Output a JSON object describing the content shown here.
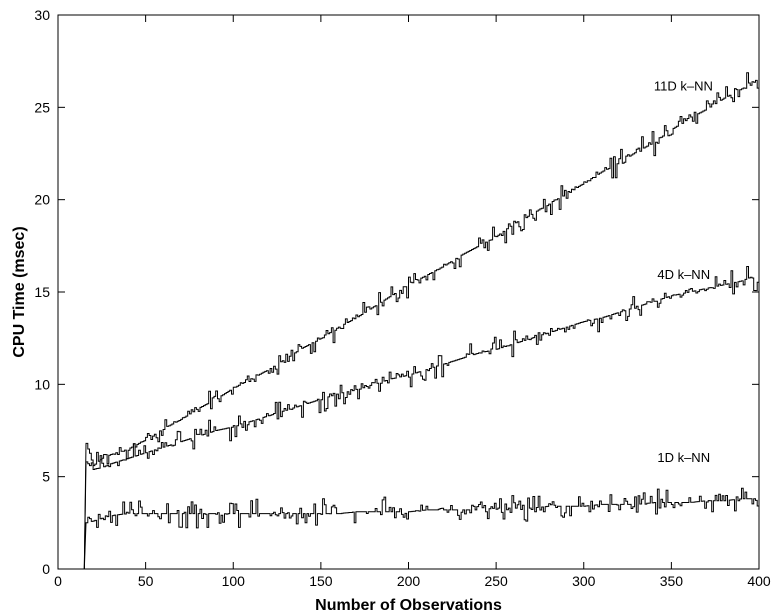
{
  "chart_data": {
    "type": "line",
    "title": "",
    "xlabel": "Number of Observations",
    "ylabel": "CPU Time (msec)",
    "xlim": [
      0,
      400
    ],
    "ylim": [
      0,
      30
    ],
    "xticks": [
      0,
      50,
      100,
      150,
      200,
      250,
      300,
      350,
      400
    ],
    "yticks": [
      0,
      5,
      10,
      15,
      20,
      25,
      30
    ],
    "xtick_labels": [
      "0",
      "50",
      "100",
      "150",
      "200",
      "250",
      "300",
      "350",
      "400"
    ],
    "ytick_labels": [
      "0",
      "5",
      "10",
      "15",
      "20",
      "25",
      "30"
    ],
    "grid": false,
    "legend": "none",
    "line_color": "#000000",
    "series": [
      {
        "label": "11D k–NN",
        "label_pos": [
          340,
          25.9
        ],
        "x": [
          15,
          16,
          20,
          25,
          30,
          40,
          50,
          60,
          70,
          80,
          90,
          100,
          110,
          120,
          130,
          140,
          150,
          160,
          170,
          180,
          190,
          200,
          210,
          220,
          230,
          240,
          250,
          260,
          270,
          280,
          290,
          300,
          310,
          320,
          330,
          340,
          350,
          360,
          370,
          380,
          390,
          395,
          400
        ],
        "y": [
          0,
          6.8,
          5.6,
          6.0,
          6.2,
          6.5,
          7.0,
          7.6,
          8.1,
          8.7,
          9.2,
          9.8,
          10.3,
          10.8,
          11.4,
          12.0,
          12.5,
          13.1,
          13.6,
          14.2,
          14.8,
          15.4,
          15.9,
          16.4,
          17.0,
          17.5,
          18.0,
          18.7,
          19.2,
          19.8,
          20.3,
          20.9,
          21.5,
          22.0,
          22.6,
          23.1,
          23.8,
          24.4,
          24.9,
          25.5,
          26.0,
          26.4,
          26.3
        ]
      },
      {
        "label": "4D k–NN",
        "label_pos": [
          342,
          15.7
        ],
        "x": [
          15,
          16,
          20,
          25,
          30,
          40,
          50,
          60,
          70,
          80,
          90,
          100,
          110,
          120,
          130,
          140,
          150,
          160,
          170,
          180,
          190,
          200,
          210,
          220,
          230,
          240,
          250,
          260,
          270,
          280,
          290,
          300,
          310,
          320,
          330,
          340,
          350,
          360,
          370,
          380,
          390,
          395,
          400
        ],
        "y": [
          0,
          5.8,
          5.4,
          5.5,
          5.7,
          6.0,
          6.3,
          6.6,
          6.9,
          7.2,
          7.5,
          7.7,
          8.0,
          8.3,
          8.6,
          8.9,
          9.2,
          9.5,
          9.7,
          10.0,
          10.3,
          10.5,
          10.8,
          11.1,
          11.4,
          11.7,
          11.9,
          12.2,
          12.5,
          12.8,
          13.1,
          13.4,
          13.6,
          13.9,
          14.2,
          14.5,
          14.8,
          15.0,
          15.2,
          15.4,
          15.6,
          15.8,
          15.6
        ]
      },
      {
        "label": "1D k–NN",
        "label_pos": [
          342,
          5.8
        ],
        "x": [
          15,
          16,
          20,
          30,
          40,
          50,
          60,
          70,
          80,
          90,
          100,
          110,
          120,
          130,
          140,
          150,
          160,
          170,
          180,
          190,
          200,
          210,
          220,
          230,
          240,
          250,
          260,
          270,
          280,
          290,
          300,
          310,
          320,
          330,
          340,
          350,
          360,
          370,
          380,
          390,
          400
        ],
        "y": [
          0,
          2.5,
          2.6,
          2.9,
          3.0,
          3.0,
          3.0,
          3.0,
          3.0,
          3.0,
          3.0,
          3.0,
          3.0,
          3.0,
          3.0,
          3.0,
          3.0,
          3.1,
          3.1,
          3.1,
          3.1,
          3.2,
          3.2,
          3.2,
          3.2,
          3.3,
          3.3,
          3.3,
          3.4,
          3.4,
          3.4,
          3.5,
          3.5,
          3.5,
          3.6,
          3.6,
          3.6,
          3.7,
          3.7,
          3.8,
          3.8
        ]
      }
    ]
  }
}
